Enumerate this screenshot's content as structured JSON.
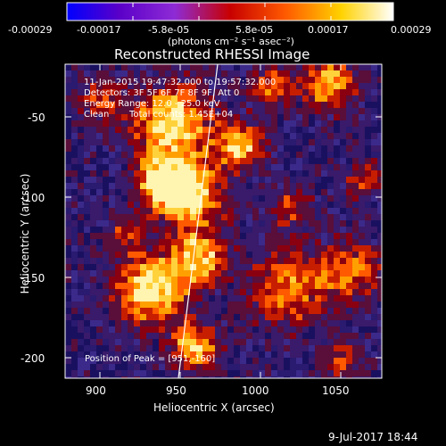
{
  "colorbar": {
    "ticks": [
      "-0.00029",
      "-0.00017",
      "-5.8e-05",
      "5.8e-05",
      "0.00017",
      "0.00029"
    ],
    "units": "(photons cm⁻² s⁻¹ asec⁻²)",
    "range": [
      -0.00029,
      0.00029
    ],
    "colors": [
      "#0000ff",
      "#5a00c8",
      "#8e2bd6",
      "#c80000",
      "#ff5a00",
      "#ffd200",
      "#ffffff"
    ]
  },
  "plot": {
    "title": "Reconstructed RHESSI Image",
    "xlabel": "Heliocentric X (arcsec)",
    "ylabel": "Heliocentric Y (arcsec)",
    "xticks": [
      "900",
      "950",
      "1000",
      "1050"
    ],
    "yticks": [
      "-50",
      "-100",
      "-150",
      "-200"
    ],
    "xlim": [
      881,
      1075
    ],
    "ylim": [
      -214,
      -11
    ],
    "limb_line": true
  },
  "annotations": {
    "time": "11-Jan-2015 19:47:32.000 to 19:57:32.000",
    "detectors": "Detectors: 3F 5F 6F 7F 8F 9F, Att 0",
    "energy": "Energy Range: 12.0 - 25.0 keV",
    "method": "Clean",
    "counts": "Total counts: 1.45E+04",
    "peak": "Position of Peak = [951,-160]"
  },
  "footer": {
    "date": "9-Jul-2017 18:44"
  }
}
